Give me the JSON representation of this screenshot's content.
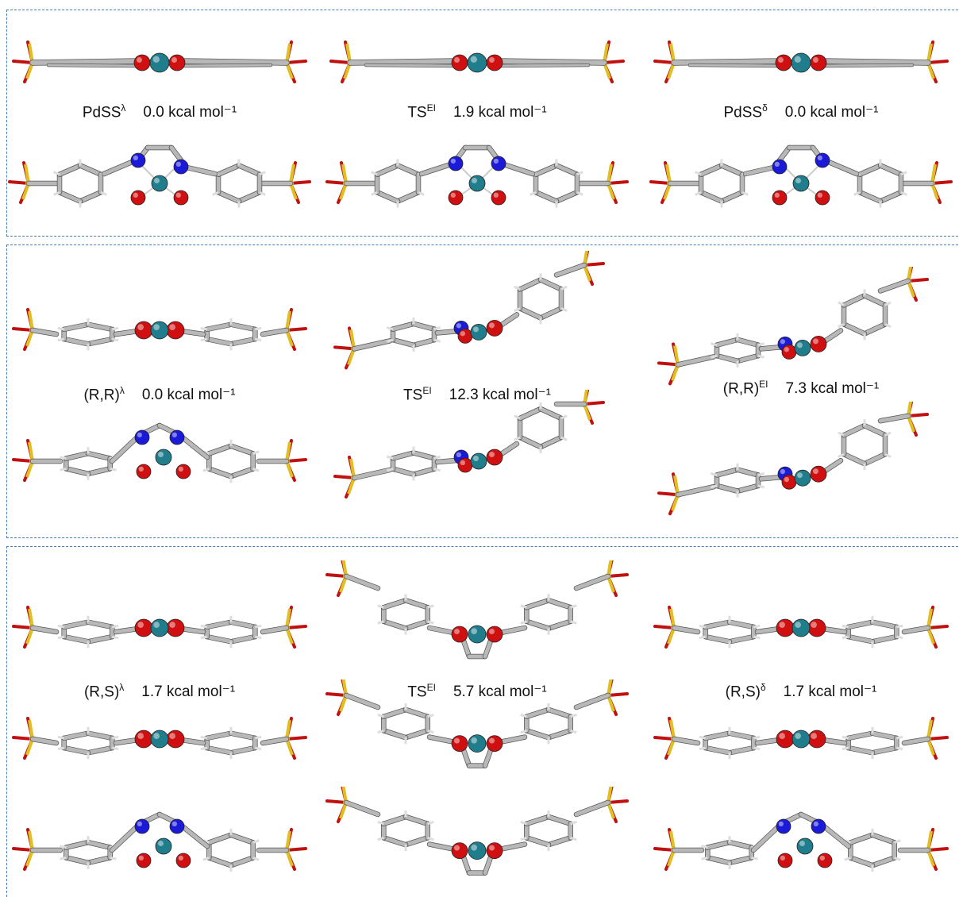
{
  "colors": {
    "pd": "#1f7d8c",
    "o": "#d01010",
    "n": "#1a1ad8",
    "s": "#e0c020",
    "c": "#8a8a8a",
    "h": "#e8e8e8",
    "border": "#4a7fb5"
  },
  "panels": [
    {
      "cells": [
        {
          "name": "PdSS",
          "sup": "λ",
          "energy": "0.0 kcal mol⁻¹",
          "side_view": "edge",
          "top_view": "planar-lambda"
        },
        {
          "name": "TS",
          "sup": "EI",
          "energy": "1.9 kcal mol⁻¹",
          "side_view": "edge",
          "top_view": "planar"
        },
        {
          "name": "PdSS",
          "sup": "δ",
          "energy": "0.0 kcal mol⁻¹",
          "side_view": "edge",
          "top_view": "planar-delta"
        }
      ]
    },
    {
      "cells": [
        {
          "name": "(R,R)",
          "sup": "λ",
          "energy": "0.0 kcal mol⁻¹",
          "side_view": "flat",
          "top_view": "stepped"
        },
        {
          "name": "TS",
          "sup": "EI",
          "energy": "12.3 kcal mol⁻¹",
          "side_view": "twisted",
          "top_view": "twisted"
        },
        {
          "name": "(R,R)",
          "sup": "EI",
          "energy": "7.3 kcal mol⁻¹",
          "side_view": "twisted",
          "top_view": "twisted"
        }
      ]
    },
    {
      "cells": [
        {
          "name": "(R,S)",
          "sup": "λ",
          "energy": "1.7 kcal mol⁻¹",
          "side_view": "flat",
          "top_view": "stepped"
        },
        {
          "name": "TS",
          "sup": "EI",
          "energy": "5.7 kcal mol⁻¹",
          "side_view": "v-shape",
          "top_view": "v-shape"
        },
        {
          "name": "(R,S)",
          "sup": "δ",
          "energy": "1.7 kcal mol⁻¹",
          "side_view": "flat",
          "top_view": "stepped"
        }
      ]
    }
  ]
}
